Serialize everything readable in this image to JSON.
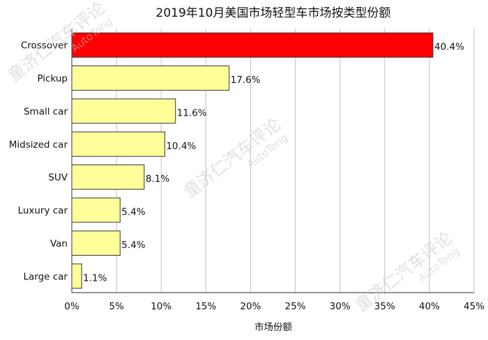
{
  "chart_data": {
    "type": "bar",
    "orientation": "horizontal",
    "title": "2019年10月美国市场轻型车市场按类型份额",
    "xlabel": "市场份额",
    "ylabel": "",
    "categories": [
      "Crossover",
      "Pickup",
      "Small car",
      "Midsized car",
      "SUV",
      "Luxury car",
      "Van",
      "Large car"
    ],
    "values": [
      40.4,
      17.6,
      11.6,
      10.4,
      8.1,
      5.4,
      5.4,
      1.1
    ],
    "value_labels": [
      "40.4%",
      "17.6%",
      "11.6%",
      "10.4%",
      "8.1%",
      "5.4%",
      "5.4%",
      "1.1%"
    ],
    "xlim": [
      0,
      45
    ],
    "xticks": [
      0,
      5,
      10,
      15,
      20,
      25,
      30,
      35,
      40,
      45
    ],
    "xtick_labels": [
      "0%",
      "5%",
      "10%",
      "15%",
      "20%",
      "25%",
      "30%",
      "35%",
      "40%",
      "45%"
    ],
    "grid": "vertical",
    "colors": {
      "highlight": "#ff0000",
      "bar": "#ffff99",
      "bar_edge": "#333333",
      "grid": "#c0c0c0"
    },
    "highlight_index": 0
  },
  "watermarks": [
    "童济仁汽车评论",
    "AutoTong"
  ]
}
